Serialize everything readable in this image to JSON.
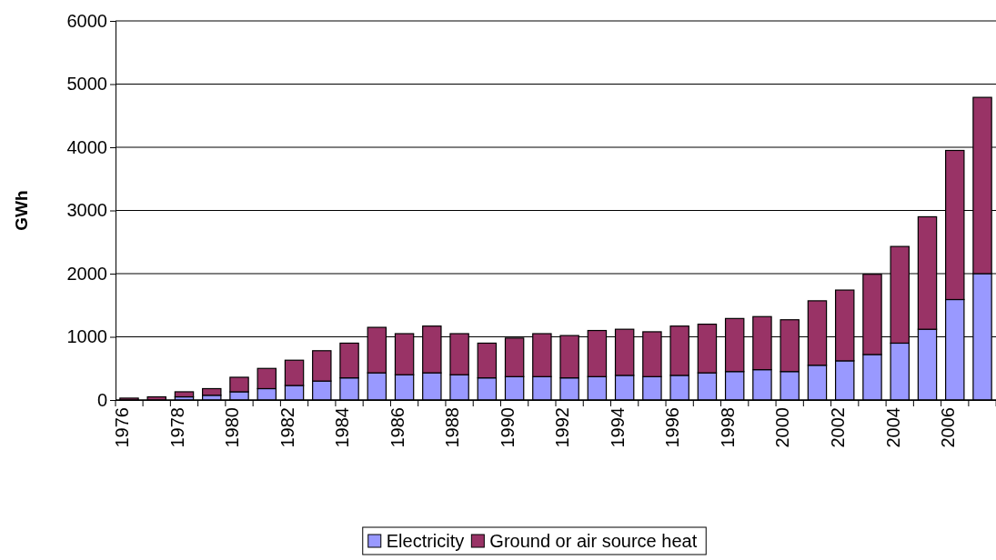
{
  "chart_data": {
    "type": "bar",
    "ylabel": "GWh",
    "stacked": true,
    "categories": [
      "1976",
      null,
      "1978",
      null,
      "1980",
      null,
      "1982",
      null,
      "1984",
      null,
      "1986",
      null,
      "1988",
      null,
      "1990",
      null,
      "1992",
      null,
      "1994",
      null,
      "1996",
      null,
      "1998",
      null,
      "2000",
      null,
      "2002",
      null,
      "2004",
      null,
      "2006",
      null
    ],
    "series": [
      {
        "name": "Electricity",
        "color": "#9999ff",
        "values": [
          null,
          null,
          50,
          75,
          130,
          180,
          230,
          300,
          350,
          430,
          400,
          430,
          400,
          350,
          370,
          370,
          350,
          370,
          390,
          370,
          390,
          430,
          450,
          480,
          450,
          550,
          620,
          720,
          900,
          1120,
          1590,
          2000
        ]
      },
      {
        "name": "Ground or air source heat",
        "color": "#993366",
        "values": [
          30,
          50,
          80,
          105,
          230,
          320,
          400,
          480,
          550,
          720,
          650,
          740,
          650,
          550,
          610,
          680,
          670,
          730,
          730,
          710,
          780,
          770,
          840,
          840,
          820,
          1020,
          1120,
          1270,
          1530,
          1780,
          2360,
          2790
        ]
      }
    ],
    "ylim": [
      0,
      6000
    ],
    "yticks": [
      0,
      1000,
      2000,
      3000,
      4000,
      5000,
      6000
    ],
    "grid": "y",
    "legend": "bottom"
  }
}
